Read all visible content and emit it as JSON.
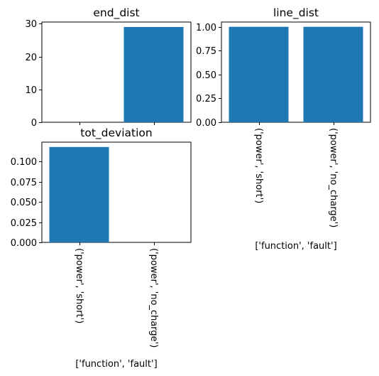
{
  "chart_data": [
    {
      "type": "bar",
      "title": "end_dist",
      "categories": [
        "('power', 'short')",
        "('power', 'no_charge')"
      ],
      "values": [
        0,
        29
      ],
      "ylim": [
        0,
        30.5
      ],
      "yticks": [
        0,
        10,
        20,
        30
      ],
      "ytick_labels": [
        "0",
        "10",
        "20",
        "30"
      ],
      "show_xticklabels": false,
      "xlabel": "",
      "bar_color": "#1f77b4"
    },
    {
      "type": "bar",
      "title": "line_dist",
      "categories": [
        "('power', 'short')",
        "('power', 'no_charge')"
      ],
      "values": [
        1.0,
        1.0
      ],
      "ylim": [
        0,
        1.05
      ],
      "yticks": [
        0,
        0.25,
        0.5,
        0.75,
        1.0
      ],
      "ytick_labels": [
        "0.00",
        "0.25",
        "0.50",
        "0.75",
        "1.00"
      ],
      "show_xticklabels": true,
      "xlabel": "['function', 'fault']",
      "bar_color": "#1f77b4"
    },
    {
      "type": "bar",
      "title": "tot_deviation",
      "categories": [
        "('power', 'short')",
        "('power', 'no_charge')"
      ],
      "values": [
        0.118,
        0
      ],
      "ylim": [
        0,
        0.124
      ],
      "yticks": [
        0,
        0.025,
        0.05,
        0.075,
        0.1
      ],
      "ytick_labels": [
        "0.000",
        "0.025",
        "0.050",
        "0.075",
        "0.100"
      ],
      "show_xticklabels": true,
      "xlabel": "['function', 'fault']",
      "bar_color": "#1f77b4"
    }
  ]
}
